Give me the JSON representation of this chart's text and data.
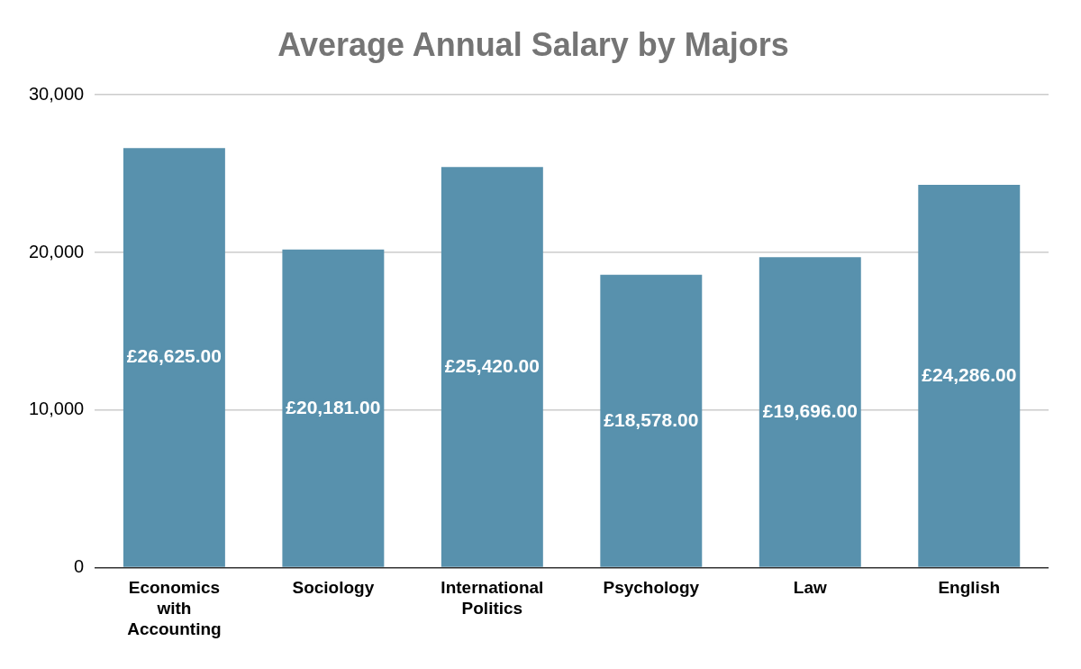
{
  "chart_data": {
    "type": "bar",
    "title": "Average Annual Salary by Majors",
    "categories": [
      "Economics with Accounting",
      "Sociology",
      "International Politics",
      "Psychology",
      "Law",
      "English"
    ],
    "values": [
      26625,
      20181,
      25420,
      18578,
      19696,
      24286
    ],
    "value_labels": [
      "£26,625.00",
      "£20,181.00",
      "£25,420.00",
      "£18,578.00",
      "£19,696.00",
      "£24,286.00"
    ],
    "color": "#5891ad",
    "ylim": [
      0,
      30000
    ],
    "yticks": [
      0,
      {
        "value": 10000,
        "label": "10,000"
      },
      {
        "value": 20000,
        "label": "20,000"
      },
      {
        "value": 30000,
        "label": "30,000"
      }
    ],
    "grid": "y",
    "legend": false
  }
}
